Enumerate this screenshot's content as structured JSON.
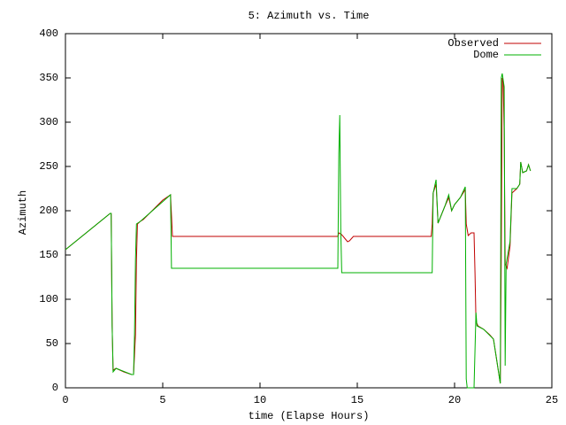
{
  "chart_data": {
    "type": "line",
    "title": "5: Azimuth vs. Time",
    "x_label": "time (Elapse Hours)",
    "y_label": "Azimuth",
    "xlim": [
      0,
      25
    ],
    "xticks": [
      0,
      5,
      10,
      15,
      20,
      25
    ],
    "ylim": [
      0,
      400
    ],
    "yticks": [
      0,
      50,
      100,
      150,
      200,
      250,
      300,
      350,
      400
    ],
    "grid": false,
    "legend": "top-right",
    "series": [
      {
        "name": "Observed",
        "color": "#c00000",
        "x": [
          0,
          2.3,
          2.35,
          2.4,
          2.45,
          2.6,
          3.0,
          3.4,
          3.5,
          3.6,
          3.65,
          3.7,
          3.85,
          4.0,
          5.0,
          5.4,
          5.45,
          5.5,
          10,
          14.0,
          14.05,
          14.2,
          14.5,
          14.6,
          14.8,
          18.8,
          18.85,
          18.9,
          19.05,
          19.15,
          19.5,
          19.7,
          19.85,
          20.0,
          20.3,
          20.55,
          20.6,
          20.7,
          20.85,
          21.0,
          21.05,
          21.1,
          21.2,
          21.5,
          21.8,
          22.0,
          22.35,
          22.4,
          22.45,
          22.5,
          22.55,
          22.6,
          22.7,
          22.85,
          22.95,
          23.2,
          23.35,
          23.4,
          23.5,
          23.7,
          23.8,
          23.9
        ],
        "values": [
          156,
          197,
          197,
          70,
          20,
          22,
          18,
          15,
          15,
          60,
          145,
          185,
          188,
          190,
          212,
          218,
          195,
          171,
          171,
          171,
          175,
          173,
          165,
          166,
          171,
          171,
          185,
          220,
          230,
          186,
          205,
          215,
          200,
          207,
          215,
          224,
          185,
          172,
          175,
          175,
          130,
          75,
          70,
          66,
          60,
          55,
          5,
          150,
          350,
          345,
          290,
          140,
          135,
          160,
          220,
          225,
          230,
          255,
          243,
          245,
          252,
          245
        ]
      },
      {
        "name": "Dome",
        "color": "#00b000",
        "x": [
          0,
          2.3,
          2.35,
          2.4,
          2.45,
          2.6,
          3.4,
          3.5,
          3.55,
          3.6,
          3.65,
          3.85,
          5.4,
          5.45,
          14.0,
          14.05,
          14.1,
          14.15,
          14.2,
          18.85,
          18.9,
          19.05,
          19.15,
          19.5,
          19.7,
          19.85,
          20.0,
          20.3,
          20.55,
          20.6,
          20.65,
          21.0,
          21.1,
          21.15,
          21.5,
          22.0,
          22.35,
          22.4,
          22.45,
          22.55,
          22.6,
          22.65,
          22.85,
          22.95,
          23.2,
          23.35,
          23.4,
          23.5,
          23.7,
          23.8,
          23.9
        ],
        "values": [
          156,
          197,
          197,
          70,
          18,
          22,
          15,
          15,
          60,
          145,
          185,
          188,
          218,
          135,
          135,
          265,
          308,
          180,
          130,
          130,
          220,
          235,
          186,
          205,
          218,
          200,
          207,
          215,
          227,
          10,
          0,
          0,
          85,
          70,
          66,
          55,
          5,
          350,
          355,
          340,
          25,
          140,
          165,
          225,
          225,
          230,
          255,
          243,
          245,
          252,
          245
        ]
      }
    ]
  }
}
